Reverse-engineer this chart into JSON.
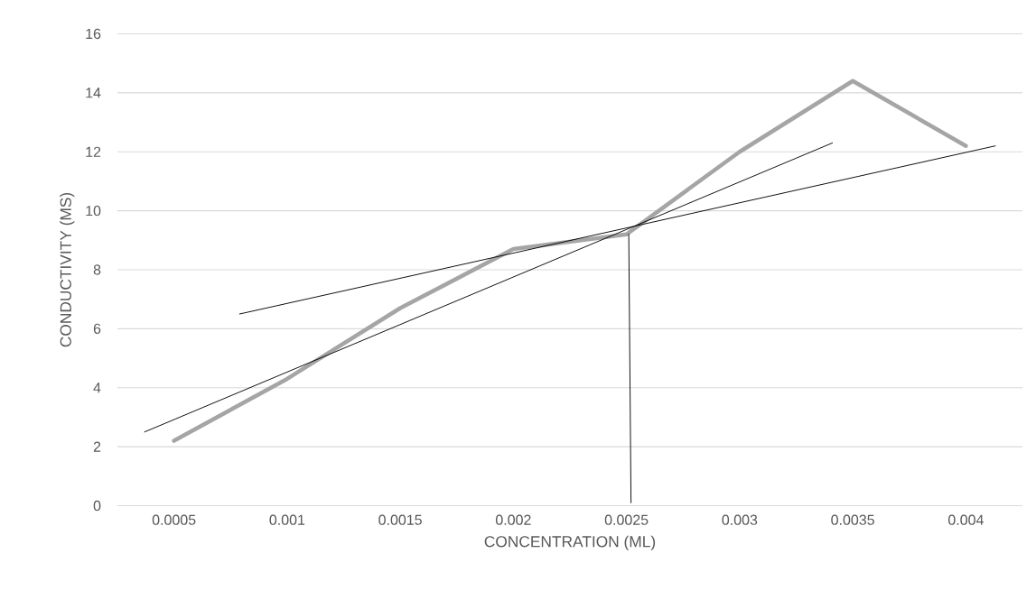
{
  "chart_data": {
    "type": "line",
    "xlabel": "CONCENTRATION (ML)",
    "ylabel": "CONDUCTIVITY (MS)",
    "x": [
      0.0005,
      0.001,
      0.0015,
      0.002,
      0.0025,
      0.003,
      0.0035,
      0.004
    ],
    "xlim": [
      0.00025,
      0.00425
    ],
    "xticks": [
      0.0005,
      0.001,
      0.0015,
      0.002,
      0.0025,
      0.003,
      0.0035,
      0.004
    ],
    "ylim": [
      0,
      16
    ],
    "yticks": [
      0,
      2,
      4,
      6,
      8,
      10,
      12,
      14,
      16
    ],
    "grid": "y",
    "marker": "none",
    "series": [
      {
        "color": "#a5a5a5",
        "values": [
          2.2,
          4.3,
          6.7,
          8.7,
          9.2,
          12.0,
          14.4,
          12.2
        ]
      },
      {
        "type": "line",
        "color": "#000000",
        "x": [
          0.00037,
          0.00341
        ],
        "values": [
          2.5,
          12.3
        ]
      },
      {
        "type": "line",
        "color": "#000000",
        "x": [
          0.00079,
          0.00413
        ],
        "values": [
          6.5,
          12.2
        ]
      },
      {
        "type": "line",
        "color": "#000000",
        "x": [
          0.00251,
          0.00252
        ],
        "values": [
          9.2,
          0.1
        ]
      }
    ]
  }
}
